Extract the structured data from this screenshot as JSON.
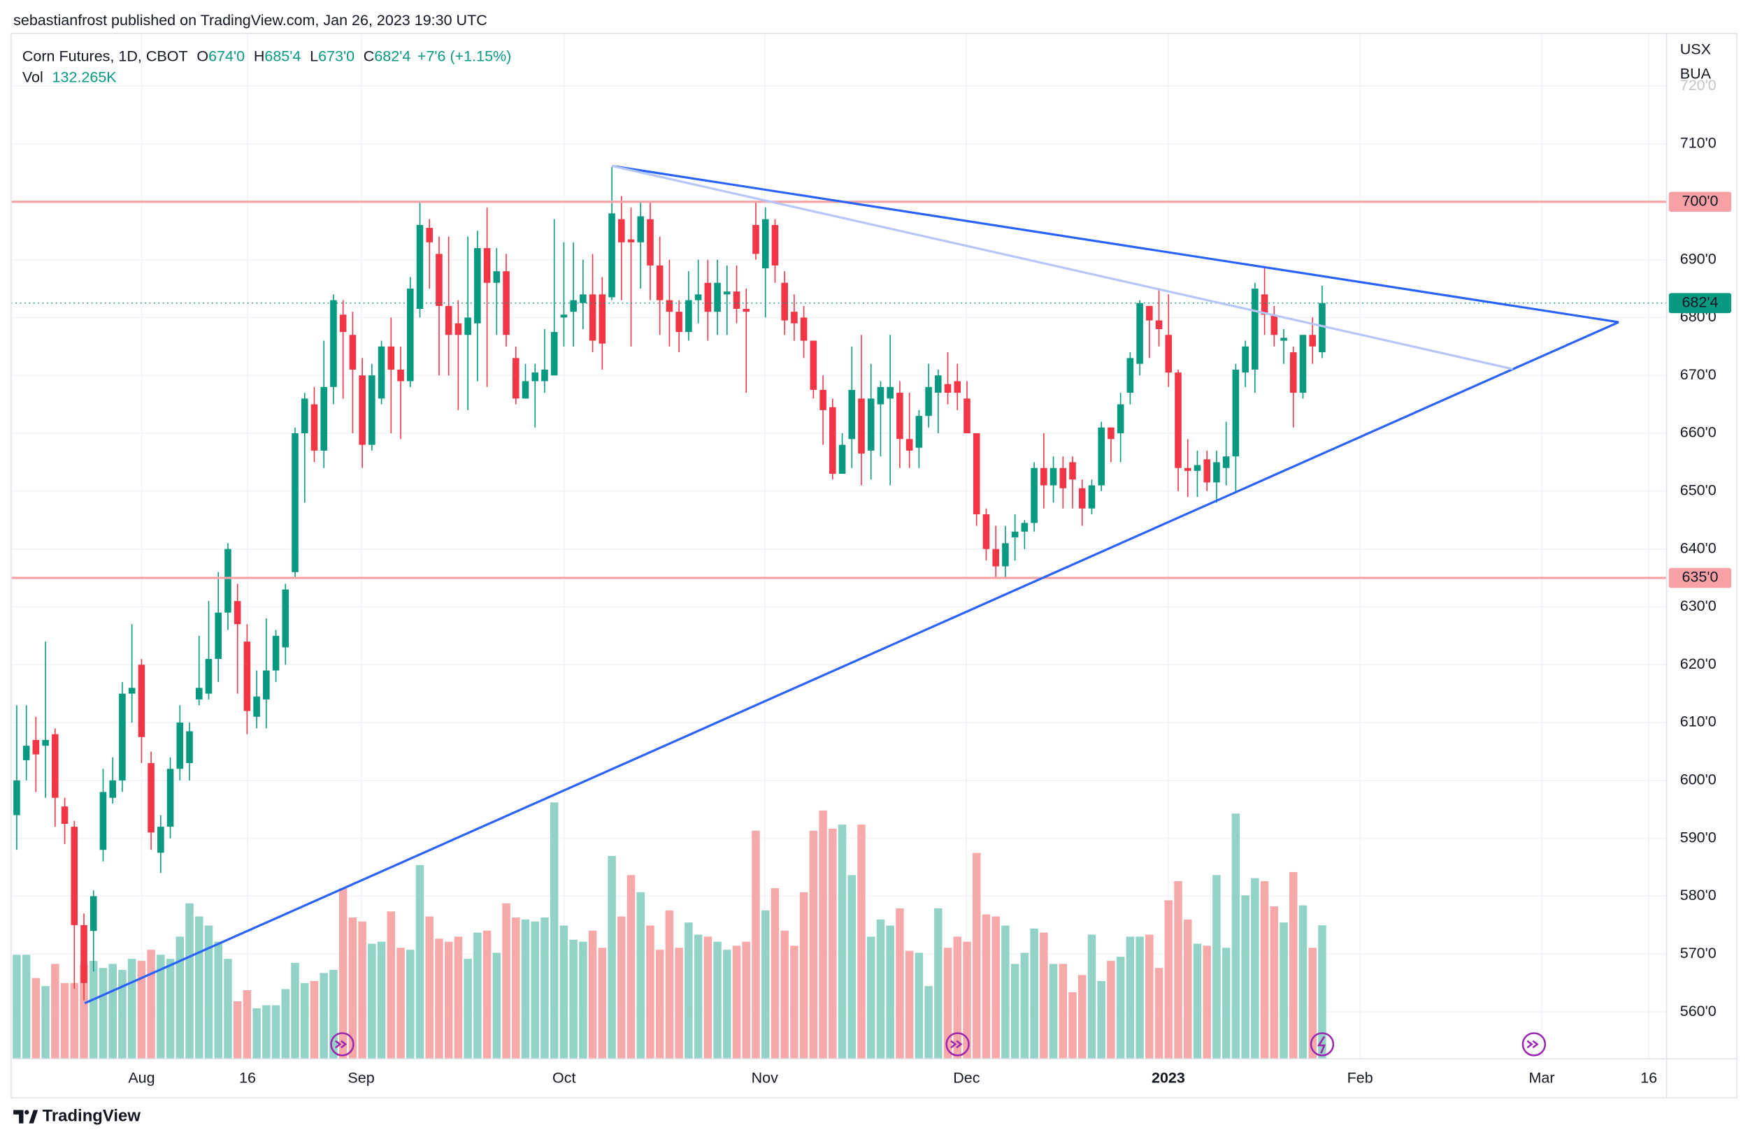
{
  "header": {
    "published": "sebastianfrost published on TradingView.com, Jan 26, 2023 19:30 UTC",
    "brand": "TradingView"
  },
  "legend": {
    "symbol": "Corn Futures, 1D, CBOT",
    "open": {
      "label": "O",
      "value": "674'0"
    },
    "high": {
      "label": "H",
      "value": "685'4"
    },
    "low": {
      "label": "L",
      "value": "673'0"
    },
    "close": {
      "label": "C",
      "value": "682'4"
    },
    "change": "+7'6 (+1.15%)",
    "volume": {
      "label": "Vol",
      "value": "132.265K"
    }
  },
  "currency": [
    "USX",
    "BUA"
  ],
  "chart_data": {
    "type": "candlestick",
    "up_color": "#089981",
    "down_color": "#f23645",
    "volume_up_color": "#92d2c7",
    "volume_down_color": "#f7a9a9",
    "ylim": [
      551.9,
      729.1
    ],
    "yticks": [
      {
        "value": 560,
        "label": "560'0"
      },
      {
        "value": 570,
        "label": "570'0"
      },
      {
        "value": 580,
        "label": "580'0"
      },
      {
        "value": 590,
        "label": "590'0"
      },
      {
        "value": 600,
        "label": "600'0"
      },
      {
        "value": 610,
        "label": "610'0"
      },
      {
        "value": 620,
        "label": "620'0"
      },
      {
        "value": 630,
        "label": "630'0"
      },
      {
        "value": 640,
        "label": "640'0"
      },
      {
        "value": 650,
        "label": "650'0"
      },
      {
        "value": 660,
        "label": "660'0"
      },
      {
        "value": 670,
        "label": "670'0"
      },
      {
        "value": 680,
        "label": "680'0"
      },
      {
        "value": 690,
        "label": "690'0"
      },
      {
        "value": 700,
        "label": "700'0"
      },
      {
        "value": 710,
        "label": "710'0"
      },
      {
        "value": 720,
        "label": "720'0"
      }
    ],
    "grid": true,
    "xlabels": [
      "Aug",
      "16",
      "Sep",
      "Oct",
      "Nov",
      "Dec",
      "2023",
      "Feb",
      "Mar",
      "16"
    ],
    "levels": [
      {
        "value": 700,
        "label": "700'0",
        "color": "#f7a1a5"
      },
      {
        "value": 635,
        "label": "635'0",
        "color": "#f7a1a5"
      }
    ],
    "last_price": {
      "value": 682.5,
      "label": "682'4",
      "color": "#089981"
    },
    "trendlines": [
      {
        "color": "#2962ff",
        "prices": [
          706.2,
          679.2
        ]
      },
      {
        "color": "#2962ff",
        "prices": [
          561.5,
          679.2
        ]
      },
      {
        "color": "#b6c6f6",
        "prices": [
          706.2,
          671.1
        ]
      }
    ],
    "candles": [
      [
        594,
        613,
        588,
        600
      ],
      [
        603.5,
        613,
        600,
        606
      ],
      [
        607,
        611,
        598,
        604.5
      ],
      [
        606,
        624,
        597,
        607
      ],
      [
        608,
        609,
        592,
        597
      ],
      [
        595.5,
        597,
        589,
        592.5
      ],
      [
        592,
        593,
        564,
        575
      ],
      [
        575,
        577,
        562,
        565
      ],
      [
        574,
        581,
        567,
        580
      ],
      [
        588,
        602,
        586,
        598
      ],
      [
        597,
        604,
        596,
        600
      ],
      [
        600,
        617,
        598,
        615
      ],
      [
        615,
        627,
        610,
        616
      ],
      [
        620,
        621,
        603,
        607.5
      ],
      [
        603,
        605,
        588,
        591
      ],
      [
        587.5,
        594,
        584,
        592
      ],
      [
        592,
        604,
        590,
        602
      ],
      [
        602,
        613,
        600,
        610
      ],
      [
        603,
        610,
        600,
        608.5
      ],
      [
        614,
        625,
        613,
        616
      ],
      [
        615,
        631,
        614,
        621
      ],
      [
        621,
        636,
        617,
        629
      ],
      [
        629,
        641,
        626,
        640
      ],
      [
        631,
        634,
        615,
        627
      ],
      [
        624,
        627,
        608,
        612
      ],
      [
        611,
        619,
        609,
        614.5
      ],
      [
        614,
        628,
        609,
        619
      ],
      [
        619,
        626,
        617,
        625
      ],
      [
        623,
        634,
        620,
        633
      ],
      [
        636,
        661,
        635,
        660
      ],
      [
        660,
        667,
        648,
        666
      ],
      [
        665,
        668,
        655,
        657
      ],
      [
        657,
        676,
        654,
        668
      ],
      [
        668,
        684,
        665,
        683
      ],
      [
        680.5,
        683,
        666,
        677.5
      ],
      [
        677,
        681,
        660,
        671
      ],
      [
        670,
        673,
        654,
        658
      ],
      [
        658,
        672,
        657,
        670
      ],
      [
        666,
        676,
        665,
        675
      ],
      [
        675,
        680,
        660,
        671
      ],
      [
        671,
        675,
        659,
        669
      ],
      [
        669,
        687,
        668,
        685
      ],
      [
        681.5,
        700,
        680,
        696
      ],
      [
        695.5,
        697,
        685,
        693
      ],
      [
        691,
        694,
        670,
        682
      ],
      [
        682,
        694,
        670,
        677
      ],
      [
        679,
        683,
        664,
        677
      ],
      [
        677,
        694,
        664,
        680
      ],
      [
        679,
        695,
        669,
        692
      ],
      [
        692,
        699,
        668,
        686
      ],
      [
        686,
        692,
        677,
        688
      ],
      [
        688,
        691,
        675,
        677
      ],
      [
        673,
        675,
        665,
        666
      ],
      [
        666,
        672,
        666,
        669
      ],
      [
        669,
        672,
        661,
        670.5
      ],
      [
        669,
        678,
        667,
        671
      ],
      [
        670,
        697,
        670,
        677.5
      ],
      [
        680,
        693,
        675,
        680.5
      ],
      [
        681,
        693,
        675,
        683
      ],
      [
        682.5,
        690,
        678,
        684
      ],
      [
        684,
        691,
        674,
        676
      ],
      [
        684,
        687,
        671,
        675.5
      ],
      [
        683.5,
        706,
        683,
        698
      ],
      [
        697,
        701,
        683,
        693
      ],
      [
        693.5,
        699,
        675,
        693
      ],
      [
        693,
        700,
        685,
        697.5
      ],
      [
        697,
        700,
        683,
        689
      ],
      [
        689,
        694,
        677,
        683
      ],
      [
        683,
        690,
        675,
        681
      ],
      [
        681,
        683,
        674,
        677.5
      ],
      [
        677.5,
        688,
        676,
        683
      ],
      [
        683,
        690,
        679,
        684
      ],
      [
        686,
        690,
        676,
        681
      ],
      [
        681,
        690,
        677,
        686
      ],
      [
        684,
        689,
        677,
        684.5
      ],
      [
        684.5,
        689,
        679,
        681.5
      ],
      [
        681.5,
        685,
        667,
        681
      ],
      [
        696,
        700,
        690,
        691
      ],
      [
        688.5,
        699,
        680,
        697
      ],
      [
        696,
        697,
        686,
        689
      ],
      [
        686,
        688,
        677,
        679.5
      ],
      [
        681,
        684,
        676,
        679
      ],
      [
        680,
        682,
        673,
        676
      ],
      [
        676,
        676,
        666,
        667.5
      ],
      [
        667.5,
        670,
        658,
        664
      ],
      [
        664.5,
        666,
        652,
        653
      ],
      [
        653,
        660,
        653,
        658
      ],
      [
        659,
        675,
        654,
        667.5
      ],
      [
        666,
        677,
        651,
        656.5
      ],
      [
        657,
        672,
        652,
        666
      ],
      [
        665,
        669,
        656,
        668
      ],
      [
        666,
        677,
        651,
        668
      ],
      [
        667,
        669,
        654,
        659
      ],
      [
        659,
        667,
        654,
        657
      ],
      [
        657.5,
        664,
        654,
        663
      ],
      [
        663,
        672,
        661,
        668
      ],
      [
        667,
        671,
        660,
        670
      ],
      [
        668.5,
        674,
        665,
        667
      ],
      [
        669,
        672,
        664,
        667
      ],
      [
        666,
        669,
        660,
        660
      ],
      [
        660,
        660,
        644,
        646
      ],
      [
        646,
        647,
        638,
        640
      ],
      [
        640,
        644,
        635,
        637
      ],
      [
        637,
        644,
        635,
        641
      ],
      [
        642,
        646,
        638,
        643
      ],
      [
        643,
        645,
        640,
        644.5
      ],
      [
        644.5,
        655,
        643,
        654
      ],
      [
        654,
        660,
        647,
        651
      ],
      [
        651,
        656,
        648,
        654
      ],
      [
        654,
        656,
        647,
        650.5
      ],
      [
        655,
        656,
        647,
        652
      ],
      [
        650.5,
        652,
        644,
        647
      ],
      [
        647,
        652,
        646,
        651
      ],
      [
        651,
        662,
        650,
        661
      ],
      [
        661,
        661,
        655,
        659
      ],
      [
        660,
        667,
        655,
        665
      ],
      [
        667,
        674,
        665,
        673
      ],
      [
        672,
        683,
        670,
        682.5
      ],
      [
        682,
        682,
        673,
        679.5
      ],
      [
        679.5,
        685,
        675,
        678
      ],
      [
        677,
        684,
        668,
        670.5
      ],
      [
        670.5,
        671,
        650,
        654
      ],
      [
        654,
        659,
        649,
        653.5
      ],
      [
        653.5,
        657,
        649,
        654.5
      ],
      [
        655.5,
        657,
        650,
        651.5
      ],
      [
        651.5,
        657,
        648,
        655
      ],
      [
        654,
        662,
        651,
        656
      ],
      [
        656,
        672,
        650,
        671
      ],
      [
        670.5,
        676,
        668,
        675
      ],
      [
        671,
        686,
        667,
        685
      ],
      [
        684,
        688.5,
        677,
        680.5
      ],
      [
        680.5,
        682,
        675,
        677
      ],
      [
        676,
        678,
        672,
        676.5
      ],
      [
        674,
        675,
        661,
        667
      ],
      [
        667,
        677,
        666,
        677
      ],
      [
        677,
        680,
        672,
        675
      ],
      [
        674,
        685.5,
        673,
        682.5
      ]
    ],
    "volumes": [
      103,
      103,
      80,
      72,
      94,
      75,
      75,
      94,
      97,
      90,
      94,
      88,
      99,
      97,
      108,
      103,
      99,
      121,
      154,
      141,
      132,
      116,
      99,
      57,
      68,
      50,
      53,
      53,
      69,
      95,
      75,
      77,
      85,
      88,
      169,
      140,
      136,
      114,
      116,
      146,
      110,
      108,
      192,
      141,
      119,
      116,
      121,
      99,
      125,
      127,
      105,
      154,
      140,
      138,
      136,
      140,
      254,
      132,
      118,
      116,
      127,
      110,
      201,
      141,
      182,
      165,
      132,
      108,
      147,
      110,
      135,
      123,
      121,
      116,
      108,
      112,
      116,
      226,
      147,
      169,
      127,
      112,
      165,
      226,
      246,
      228,
      232,
      182,
      232,
      121,
      138,
      132,
      149,
      107,
      105,
      72,
      149,
      110,
      121,
      116,
      204,
      143,
      141,
      132,
      94,
      105,
      129,
      125,
      94,
      94,
      66,
      83,
      123,
      77,
      97,
      101,
      121,
      121,
      123,
      90,
      157,
      176,
      138,
      114,
      112,
      182,
      110,
      243,
      162,
      179,
      176,
      151,
      135,
      185,
      152,
      110,
      132.265
    ]
  }
}
